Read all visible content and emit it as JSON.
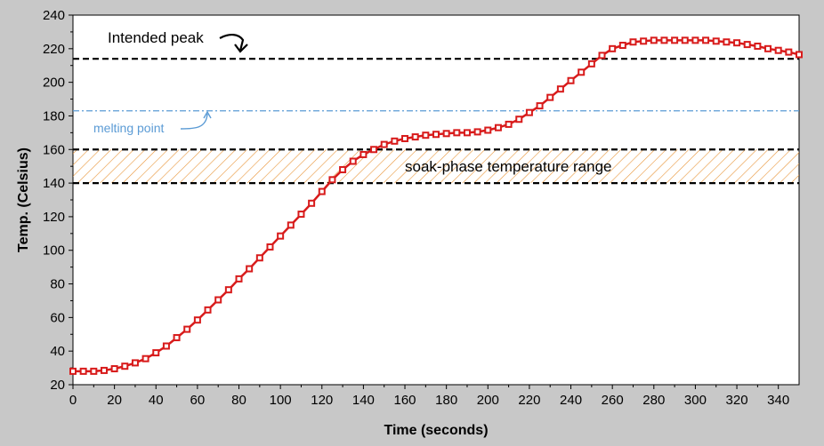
{
  "chart_data": {
    "type": "line",
    "xlabel": "Time (seconds)",
    "ylabel": "Temp. (Celsius)",
    "xlim": [
      0,
      350
    ],
    "ylim": [
      20,
      240
    ],
    "xticks": [
      0,
      20,
      40,
      60,
      80,
      100,
      120,
      140,
      160,
      180,
      200,
      220,
      240,
      260,
      280,
      300,
      320,
      340
    ],
    "yticks": [
      20,
      40,
      60,
      80,
      100,
      120,
      140,
      160,
      180,
      200,
      220,
      240
    ],
    "grid": false,
    "series": [
      {
        "color": "#d81b1b",
        "marker": "square",
        "x": [
          0,
          5,
          10,
          15,
          20,
          25,
          30,
          35,
          40,
          45,
          50,
          55,
          60,
          65,
          70,
          75,
          80,
          85,
          90,
          95,
          100,
          105,
          110,
          115,
          120,
          125,
          130,
          135,
          140,
          145,
          150,
          155,
          160,
          165,
          170,
          175,
          180,
          185,
          190,
          195,
          200,
          205,
          210,
          215,
          220,
          225,
          230,
          235,
          240,
          245,
          250,
          255,
          260,
          265,
          270,
          275,
          280,
          285,
          290,
          295,
          300,
          305,
          310,
          315,
          320,
          325,
          330,
          335,
          340,
          345,
          350
        ],
        "y": [
          28,
          28,
          28,
          28.5,
          29.5,
          31,
          33,
          35.5,
          39,
          43,
          48,
          53,
          58.5,
          64.5,
          70.5,
          76.5,
          83,
          89,
          95.5,
          102,
          108.5,
          115,
          121.5,
          128,
          135,
          142,
          148,
          153,
          157,
          160,
          163,
          165,
          166.5,
          167.5,
          168.5,
          169,
          169.5,
          170,
          170,
          170.5,
          171.5,
          173,
          175,
          178,
          182,
          186,
          191,
          196,
          201,
          206,
          211,
          216,
          220,
          222,
          224,
          224.5,
          225,
          225,
          225,
          225,
          225,
          225,
          224.5,
          224,
          223.5,
          222.5,
          221.5,
          220,
          219,
          218,
          216.5
        ]
      }
    ],
    "reference_lines": [
      {
        "y": 214,
        "label": "Intended peak",
        "color": "#000000",
        "style": "dashed"
      },
      {
        "y": 183,
        "label": "melting point",
        "color": "#5b9bd5",
        "style": "dash-dot"
      },
      {
        "y": 160,
        "color": "#000000",
        "style": "dashed"
      },
      {
        "y": 140,
        "color": "#000000",
        "style": "dashed"
      }
    ],
    "shaded_band": {
      "y0": 140,
      "y1": 160,
      "label": "soak-phase temperature range",
      "color": "#e8963a",
      "pattern": "hatch"
    }
  }
}
